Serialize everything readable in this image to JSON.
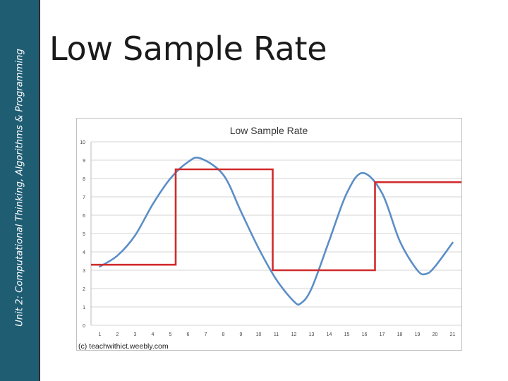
{
  "sidebar": {
    "text": "Unit 2: Computational Thinking, Algorithms & Programming"
  },
  "slide": {
    "title": "Low Sample Rate"
  },
  "chart_data": {
    "type": "line",
    "title": "Low Sample Rate",
    "xlabel": "",
    "ylabel": "",
    "x": [
      1,
      2,
      3,
      4,
      5,
      6,
      7,
      8,
      9,
      10,
      11,
      12,
      13,
      14,
      15,
      16,
      17,
      18,
      19,
      20,
      21
    ],
    "xlim": [
      0.5,
      21.5
    ],
    "ylim": [
      0,
      10
    ],
    "yticks": [
      0,
      1,
      2,
      3,
      4,
      5,
      6,
      7,
      8,
      9,
      10
    ],
    "grid": true,
    "legend": "none",
    "series": [
      {
        "color": "#5b8ec7",
        "style": "smooth",
        "points": [
          [
            1,
            3.2
          ],
          [
            2,
            3.8
          ],
          [
            3,
            4.9
          ],
          [
            4,
            6.6
          ],
          [
            5,
            8.0
          ],
          [
            6,
            8.9
          ],
          [
            6.7,
            9.1
          ],
          [
            8,
            8.2
          ],
          [
            9,
            6.2
          ],
          [
            10,
            4.2
          ],
          [
            11,
            2.5
          ],
          [
            12,
            1.3
          ],
          [
            12.4,
            1.2
          ],
          [
            13,
            2.0
          ],
          [
            14,
            4.6
          ],
          [
            15,
            7.2
          ],
          [
            15.9,
            8.3
          ],
          [
            17,
            7.2
          ],
          [
            18,
            4.6
          ],
          [
            19,
            3.0
          ],
          [
            19.5,
            2.8
          ],
          [
            20,
            3.2
          ],
          [
            21,
            4.5
          ]
        ]
      },
      {
        "color": "#d12b2b",
        "style": "step",
        "points": [
          [
            0.5,
            3.3
          ],
          [
            5.3,
            3.3
          ],
          [
            5.3,
            8.5
          ],
          [
            10.8,
            8.5
          ],
          [
            10.8,
            3.0
          ],
          [
            16.6,
            3.0
          ],
          [
            16.6,
            7.8
          ],
          [
            21.5,
            7.8
          ]
        ]
      }
    ],
    "annotation": "(c) teachwithict.weebly.com"
  },
  "colors": {
    "sidebar": "#1f5d73",
    "grid": "#d4d4d4",
    "wave": "#5b8ec7",
    "samples": "#d12b2b"
  }
}
